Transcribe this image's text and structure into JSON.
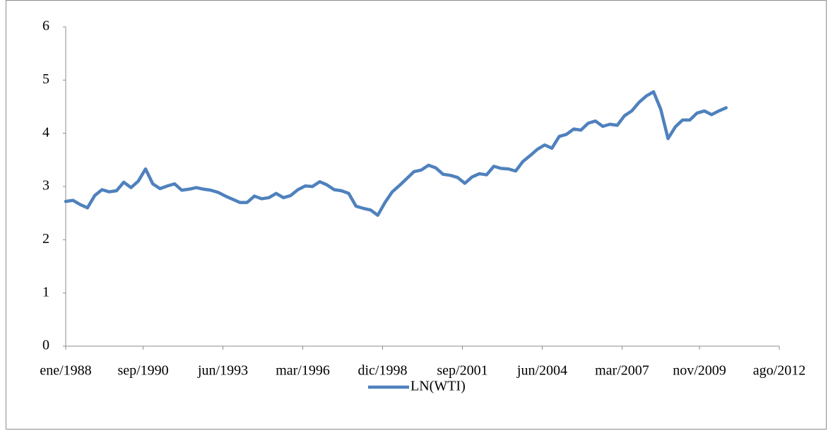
{
  "chart_data": {
    "type": "line",
    "x": [
      "1988-01",
      "1988-04",
      "1988-07",
      "1988-10",
      "1989-01",
      "1989-04",
      "1989-07",
      "1989-10",
      "1990-01",
      "1990-04",
      "1990-07",
      "1990-10",
      "1991-01",
      "1991-04",
      "1991-07",
      "1991-10",
      "1992-01",
      "1992-04",
      "1992-07",
      "1992-10",
      "1993-01",
      "1993-04",
      "1993-07",
      "1993-10",
      "1994-01",
      "1994-04",
      "1994-07",
      "1994-10",
      "1995-01",
      "1995-04",
      "1995-07",
      "1995-10",
      "1996-01",
      "1996-04",
      "1996-07",
      "1996-10",
      "1997-01",
      "1997-04",
      "1997-07",
      "1997-10",
      "1998-01",
      "1998-04",
      "1998-07",
      "1998-10",
      "1999-01",
      "1999-04",
      "1999-07",
      "1999-10",
      "2000-01",
      "2000-04",
      "2000-07",
      "2000-10",
      "2001-01",
      "2001-04",
      "2001-07",
      "2001-10",
      "2002-01",
      "2002-04",
      "2002-07",
      "2002-10",
      "2003-01",
      "2003-04",
      "2003-07",
      "2003-10",
      "2004-01",
      "2004-04",
      "2004-07",
      "2004-10",
      "2005-01",
      "2005-04",
      "2005-07",
      "2005-10",
      "2006-01",
      "2006-04",
      "2006-07",
      "2006-10",
      "2007-01",
      "2007-04",
      "2007-07",
      "2007-10",
      "2008-01",
      "2008-04",
      "2008-07",
      "2008-10",
      "2009-01",
      "2009-04",
      "2009-07",
      "2009-10",
      "2010-01",
      "2010-04",
      "2010-07",
      "2010-10"
    ],
    "series": [
      {
        "name": "LN(WTI)",
        "color": "#4f81bd",
        "values": [
          2.72,
          2.74,
          2.66,
          2.6,
          2.83,
          2.94,
          2.9,
          2.92,
          3.08,
          2.98,
          3.1,
          3.33,
          3.05,
          2.96,
          3.01,
          3.05,
          2.93,
          2.95,
          2.98,
          2.95,
          2.93,
          2.89,
          2.82,
          2.76,
          2.7,
          2.7,
          2.82,
          2.77,
          2.79,
          2.87,
          2.79,
          2.83,
          2.94,
          3.01,
          3.0,
          3.09,
          3.03,
          2.94,
          2.92,
          2.87,
          2.63,
          2.59,
          2.56,
          2.46,
          2.7,
          2.9,
          3.02,
          3.15,
          3.28,
          3.31,
          3.4,
          3.35,
          3.23,
          3.21,
          3.17,
          3.06,
          3.18,
          3.24,
          3.22,
          3.38,
          3.34,
          3.33,
          3.29,
          3.47,
          3.58,
          3.7,
          3.78,
          3.72,
          3.94,
          3.98,
          4.08,
          4.06,
          4.19,
          4.23,
          4.13,
          4.17,
          4.15,
          4.33,
          4.42,
          4.58,
          4.7,
          4.78,
          4.45,
          3.9,
          4.12,
          4.25,
          4.25,
          4.38,
          4.42,
          4.35,
          4.42,
          4.48
        ]
      }
    ],
    "xlim": [
      "1988-01",
      "2012-08"
    ],
    "xticks": [
      {
        "value": "1988-01",
        "label": "ene/1988"
      },
      {
        "value": "1990-09",
        "label": "sep/1990"
      },
      {
        "value": "1993-06",
        "label": "jun/1993"
      },
      {
        "value": "1996-03",
        "label": "mar/1996"
      },
      {
        "value": "1998-12",
        "label": "dic/1998"
      },
      {
        "value": "2001-09",
        "label": "sep/2001"
      },
      {
        "value": "2004-06",
        "label": "jun/2004"
      },
      {
        "value": "2007-03",
        "label": "mar/2007"
      },
      {
        "value": "2009-11",
        "label": "nov/2009"
      },
      {
        "value": "2012-08",
        "label": "ago/2012"
      }
    ],
    "ylim": [
      0,
      6
    ],
    "yticks": [
      0,
      1,
      2,
      3,
      4,
      5,
      6
    ],
    "grid": false,
    "legend": "bottom"
  }
}
